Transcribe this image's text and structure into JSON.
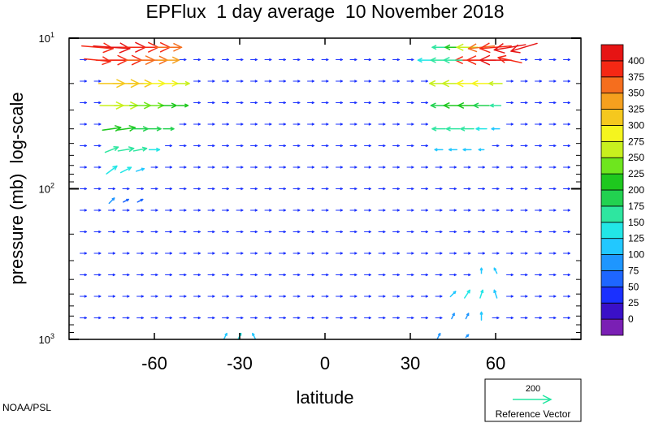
{
  "chart_data": {
    "type": "vector-field",
    "title": "EPFlux  1 day average  10 November 2018",
    "xlabel": "latitude",
    "ylabel": "pressure (mb)  log-scale",
    "xlim": [
      -90,
      90
    ],
    "ylim": [
      1000,
      10
    ],
    "y_scale": "log",
    "x_ticks": [
      {
        "value": -60,
        "label": "-60"
      },
      {
        "value": -30,
        "label": "-30"
      },
      {
        "value": 0,
        "label": "0"
      },
      {
        "value": 30,
        "label": "30"
      },
      {
        "value": 60,
        "label": "60"
      }
    ],
    "y_ticks": [
      {
        "value": 10,
        "base": "10",
        "exp": "1"
      },
      {
        "value": 100,
        "base": "10",
        "exp": "2"
      },
      {
        "value": 1000,
        "base": "10",
        "exp": "3"
      }
    ],
    "colorbar": {
      "levels": [
        "0",
        "25",
        "50",
        "75",
        "100",
        "125",
        "150",
        "175",
        "200",
        "225",
        "250",
        "275",
        "300",
        "325",
        "350",
        "375",
        "400"
      ],
      "colors": [
        "#7a1fb4",
        "#3a10c8",
        "#1a30ff",
        "#1e66ff",
        "#1e96ff",
        "#22c8ff",
        "#22e6e6",
        "#2ee6a0",
        "#22d250",
        "#1ec81e",
        "#6ee61e",
        "#c8f01e",
        "#f5f51e",
        "#f5c81e",
        "#f5a01e",
        "#f56e1e",
        "#f52814",
        "#e61414"
      ]
    },
    "reference_vector": {
      "value": "200",
      "label": "Reference Vector",
      "color": "#22e6a0"
    },
    "vectors": [
      {
        "lat": -80,
        "p": 11.5,
        "u": 12,
        "v": -1,
        "mag": 395
      },
      {
        "lat": -75,
        "p": 11.5,
        "u": 14,
        "v": -1,
        "mag": 400
      },
      {
        "lat": -70,
        "p": 11.5,
        "u": 15,
        "v": 0,
        "mag": 400
      },
      {
        "lat": -65,
        "p": 11.5,
        "u": 14,
        "v": 0,
        "mag": 390
      },
      {
        "lat": -60,
        "p": 11.5,
        "u": 12,
        "v": 0,
        "mag": 375
      },
      {
        "lat": -55,
        "p": 11.5,
        "u": 10,
        "v": 0,
        "mag": 360
      },
      {
        "lat": -80,
        "p": 14,
        "u": 10,
        "v": -1,
        "mag": 380
      },
      {
        "lat": -75,
        "p": 14,
        "u": 12,
        "v": 0,
        "mag": 390
      },
      {
        "lat": -70,
        "p": 14,
        "u": 12,
        "v": 0,
        "mag": 385
      },
      {
        "lat": -65,
        "p": 14,
        "u": 11,
        "v": 0,
        "mag": 370
      },
      {
        "lat": -60,
        "p": 14,
        "u": 10,
        "v": 0,
        "mag": 350
      },
      {
        "lat": -55,
        "p": 14,
        "u": 8,
        "v": 0,
        "mag": 330
      },
      {
        "lat": -75,
        "p": 20,
        "u": 10,
        "v": 0,
        "mag": 320
      },
      {
        "lat": -70,
        "p": 20,
        "u": 10,
        "v": 0,
        "mag": 310
      },
      {
        "lat": -65,
        "p": 20,
        "u": 9,
        "v": 0,
        "mag": 300
      },
      {
        "lat": -60,
        "p": 20,
        "u": 8,
        "v": 0,
        "mag": 290
      },
      {
        "lat": -55,
        "p": 20,
        "u": 7,
        "v": 0,
        "mag": 275
      },
      {
        "lat": -50,
        "p": 20,
        "u": 5,
        "v": 0,
        "mag": 250
      },
      {
        "lat": -75,
        "p": 28,
        "u": 9,
        "v": 0,
        "mag": 265
      },
      {
        "lat": -70,
        "p": 28,
        "u": 9,
        "v": 0,
        "mag": 255
      },
      {
        "lat": -65,
        "p": 28,
        "u": 8,
        "v": 0,
        "mag": 245
      },
      {
        "lat": -60,
        "p": 28,
        "u": 7,
        "v": 0,
        "mag": 235
      },
      {
        "lat": -55,
        "p": 28,
        "u": 6,
        "v": 0,
        "mag": 220
      },
      {
        "lat": -50,
        "p": 28,
        "u": 4,
        "v": 0,
        "mag": 200
      },
      {
        "lat": -75,
        "p": 40,
        "u": 7,
        "v": 1,
        "mag": 215
      },
      {
        "lat": -70,
        "p": 40,
        "u": 7,
        "v": 1,
        "mag": 205
      },
      {
        "lat": -65,
        "p": 40,
        "u": 6,
        "v": 0,
        "mag": 195
      },
      {
        "lat": -60,
        "p": 40,
        "u": 5,
        "v": 0,
        "mag": 185
      },
      {
        "lat": -55,
        "p": 40,
        "u": 4,
        "v": 0,
        "mag": 175
      },
      {
        "lat": -75,
        "p": 55,
        "u": 5,
        "v": 2,
        "mag": 170
      },
      {
        "lat": -70,
        "p": 55,
        "u": 6,
        "v": 1,
        "mag": 165
      },
      {
        "lat": -65,
        "p": 55,
        "u": 5,
        "v": 1,
        "mag": 155
      },
      {
        "lat": -60,
        "p": 55,
        "u": 4,
        "v": 0,
        "mag": 145
      },
      {
        "lat": -75,
        "p": 75,
        "u": 4,
        "v": 3,
        "mag": 140
      },
      {
        "lat": -70,
        "p": 75,
        "u": 4,
        "v": 2,
        "mag": 130
      },
      {
        "lat": -65,
        "p": 75,
        "u": 3,
        "v": 1,
        "mag": 110
      },
      {
        "lat": -75,
        "p": 120,
        "u": 2,
        "v": 2,
        "mag": 80
      },
      {
        "lat": -70,
        "p": 120,
        "u": 2,
        "v": 1,
        "mag": 70
      },
      {
        "lat": -65,
        "p": 120,
        "u": 2,
        "v": 1,
        "mag": 60
      },
      {
        "lat": 40,
        "p": 11.5,
        "u": -5,
        "v": 0,
        "mag": 160
      },
      {
        "lat": 45,
        "p": 11.5,
        "u": -6,
        "v": 0,
        "mag": 200
      },
      {
        "lat": 50,
        "p": 11.5,
        "u": -8,
        "v": 0,
        "mag": 260
      },
      {
        "lat": 55,
        "p": 11.5,
        "u": -10,
        "v": -1,
        "mag": 370
      },
      {
        "lat": 60,
        "p": 11.5,
        "u": -12,
        "v": -1,
        "mag": 395
      },
      {
        "lat": 65,
        "p": 11.5,
        "u": -12,
        "v": -2,
        "mag": 400
      },
      {
        "lat": 70,
        "p": 11.5,
        "u": -10,
        "v": -3,
        "mag": 400
      },
      {
        "lat": 50,
        "p": 14,
        "u": -9,
        "v": 0,
        "mag": 380
      },
      {
        "lat": 55,
        "p": 14,
        "u": -11,
        "v": 0,
        "mag": 395
      },
      {
        "lat": 60,
        "p": 14,
        "u": -12,
        "v": 0,
        "mag": 400
      },
      {
        "lat": 65,
        "p": 14,
        "u": -9,
        "v": 2,
        "mag": 390
      },
      {
        "lat": 35,
        "p": 14,
        "u": -5,
        "v": 0,
        "mag": 140
      },
      {
        "lat": 40,
        "p": 14,
        "u": -6,
        "v": 0,
        "mag": 150
      },
      {
        "lat": 45,
        "p": 14,
        "u": -7,
        "v": 0,
        "mag": 165
      },
      {
        "lat": 40,
        "p": 20,
        "u": -7,
        "v": 0,
        "mag": 250
      },
      {
        "lat": 45,
        "p": 20,
        "u": -8,
        "v": 0,
        "mag": 270
      },
      {
        "lat": 50,
        "p": 20,
        "u": -8,
        "v": 0,
        "mag": 290
      },
      {
        "lat": 55,
        "p": 20,
        "u": -7,
        "v": 0,
        "mag": 280
      },
      {
        "lat": 60,
        "p": 20,
        "u": -5,
        "v": 0,
        "mag": 250
      },
      {
        "lat": 40,
        "p": 28,
        "u": -6,
        "v": 0,
        "mag": 190
      },
      {
        "lat": 45,
        "p": 28,
        "u": -7,
        "v": 0,
        "mag": 200
      },
      {
        "lat": 50,
        "p": 28,
        "u": -7,
        "v": 0,
        "mag": 205
      },
      {
        "lat": 55,
        "p": 28,
        "u": -6,
        "v": 0,
        "mag": 195
      },
      {
        "lat": 60,
        "p": 28,
        "u": -4,
        "v": 0,
        "mag": 170
      },
      {
        "lat": 40,
        "p": 40,
        "u": -5,
        "v": 0,
        "mag": 150
      },
      {
        "lat": 45,
        "p": 40,
        "u": -5,
        "v": 0,
        "mag": 155
      },
      {
        "lat": 50,
        "p": 40,
        "u": -5,
        "v": 0,
        "mag": 150
      },
      {
        "lat": 55,
        "p": 40,
        "u": -4,
        "v": 0,
        "mag": 140
      },
      {
        "lat": 60,
        "p": 40,
        "u": -3,
        "v": 0,
        "mag": 120
      },
      {
        "lat": 40,
        "p": 55,
        "u": -3,
        "v": 0,
        "mag": 110
      },
      {
        "lat": 45,
        "p": 55,
        "u": -3,
        "v": 0,
        "mag": 115
      },
      {
        "lat": 50,
        "p": 55,
        "u": -3,
        "v": 0,
        "mag": 110
      },
      {
        "lat": 55,
        "p": 55,
        "u": -2,
        "v": 0,
        "mag": 100
      },
      {
        "lat": 55,
        "p": 350,
        "u": 0,
        "v": 2,
        "mag": 110
      },
      {
        "lat": 60,
        "p": 350,
        "u": -1,
        "v": 2,
        "mag": 110
      },
      {
        "lat": 50,
        "p": 500,
        "u": 2,
        "v": 3,
        "mag": 130
      },
      {
        "lat": 55,
        "p": 500,
        "u": 1,
        "v": 3,
        "mag": 140
      },
      {
        "lat": 60,
        "p": 500,
        "u": -1,
        "v": 3,
        "mag": 120
      },
      {
        "lat": 45,
        "p": 500,
        "u": 2,
        "v": 2,
        "mag": 100
      },
      {
        "lat": 50,
        "p": 700,
        "u": 1,
        "v": 2,
        "mag": 90
      },
      {
        "lat": 55,
        "p": 700,
        "u": 0,
        "v": 3,
        "mag": 110
      },
      {
        "lat": 45,
        "p": 700,
        "u": 1,
        "v": 2,
        "mag": 80
      },
      {
        "lat": -35,
        "p": 950,
        "u": 1,
        "v": 2,
        "mag": 110
      },
      {
        "lat": -30,
        "p": 950,
        "u": 1,
        "v": 2,
        "mag": 130
      },
      {
        "lat": -25,
        "p": 950,
        "u": -1,
        "v": 2,
        "mag": 100
      },
      {
        "lat": 40,
        "p": 950,
        "u": 1,
        "v": 2,
        "mag": 90
      },
      {
        "lat": 50,
        "p": 950,
        "u": 1,
        "v": 1,
        "mag": 90
      }
    ],
    "background_vector_mag": 40
  },
  "footer": {
    "credit": "NOAA/PSL"
  }
}
